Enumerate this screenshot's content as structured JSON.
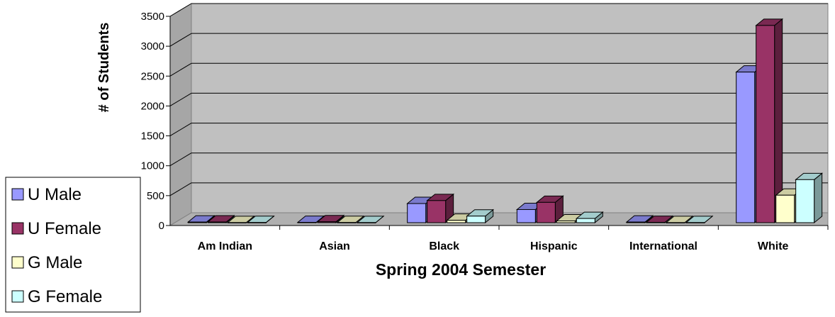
{
  "chart_data": {
    "type": "bar",
    "xlabel": "Spring 2004 Semester",
    "ylabel": "# of Students",
    "ylim": [
      0,
      3500
    ],
    "yticks": [
      0,
      500,
      1000,
      1500,
      2000,
      2500,
      3000,
      3500
    ],
    "grid": true,
    "legend_position": "bottom-left",
    "categories": [
      "Am Indian",
      "Asian",
      "Black",
      "Hispanic",
      "International",
      "White"
    ],
    "series": [
      {
        "name": "U Male",
        "color": "#9999FF",
        "values": [
          10,
          5,
          320,
          220,
          10,
          2520
        ]
      },
      {
        "name": "U Female",
        "color": "#993366",
        "values": [
          12,
          15,
          370,
          340,
          5,
          3300
        ]
      },
      {
        "name": "G Male",
        "color": "#FFFFCC",
        "values": [
          2,
          3,
          40,
          30,
          1,
          460
        ]
      },
      {
        "name": "G Female",
        "color": "#CCFFFF",
        "values": [
          3,
          2,
          110,
          70,
          2,
          720
        ]
      }
    ]
  }
}
